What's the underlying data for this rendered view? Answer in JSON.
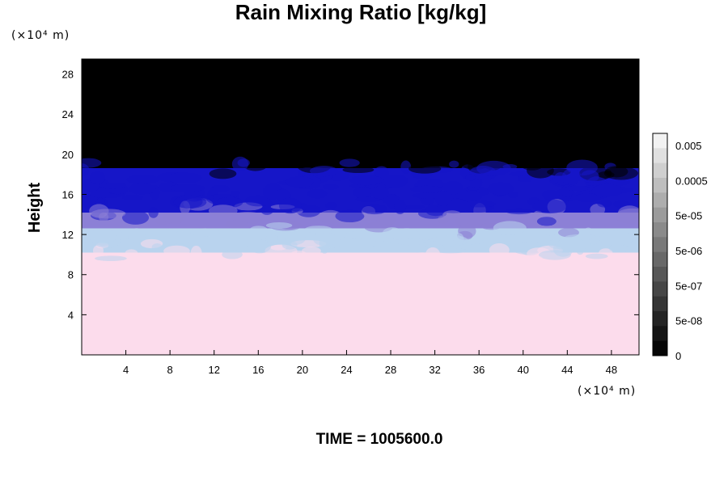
{
  "chart_data": {
    "type": "heatmap",
    "title": "Rain Mixing Ratio [kg/kg]",
    "ylabel": "Height",
    "xlabel": "",
    "x_unit": "(×10⁴ m)",
    "y_unit": "(×10⁴ m)",
    "x_ticks": [
      4,
      8,
      12,
      16,
      20,
      24,
      28,
      32,
      36,
      40,
      44,
      48
    ],
    "y_ticks": [
      4,
      8,
      12,
      16,
      20,
      24,
      28
    ],
    "xlim": [
      0,
      50.5
    ],
    "ylim": [
      0,
      29.5
    ],
    "layers": [
      {
        "from": 0,
        "to": 10.2,
        "color": "#fcdcec"
      },
      {
        "from": 10.2,
        "to": 12.6,
        "color": "#b9d3ee"
      },
      {
        "from": 12.6,
        "to": 14.2,
        "color": "#8c80d6"
      },
      {
        "from": 14.2,
        "to": 18.6,
        "color": "#1616c8"
      },
      {
        "from": 18.6,
        "to": 29.5,
        "color": "#000000"
      }
    ],
    "colorbar": {
      "labels": [
        "0.005",
        "0.0005",
        "5e-05",
        "5e-06",
        "5e-07",
        "5e-08",
        "0"
      ],
      "colors": [
        "#f2f2f2",
        "#e0e0e0",
        "#cfcfcf",
        "#bebebe",
        "#adadad",
        "#9b9b9b",
        "#8a8a8a",
        "#797979",
        "#686868",
        "#575757",
        "#464646",
        "#353535",
        "#242424",
        "#151515",
        "#060606"
      ]
    },
    "footer": "TIME = 1005600.0"
  }
}
